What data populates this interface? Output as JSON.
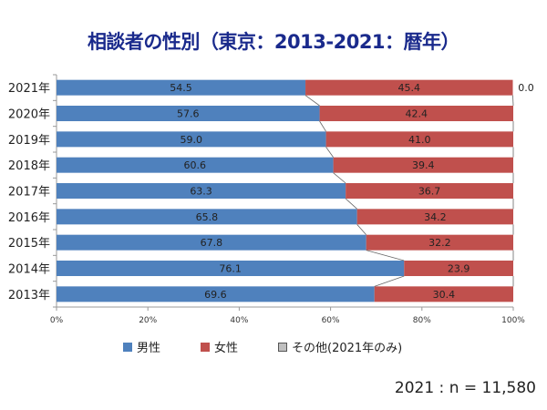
{
  "title": "相談者の性別（東京：2013-2021：暦年）",
  "footnote": "2021 : n = 11,580",
  "chart_data": {
    "type": "bar",
    "orientation": "horizontal",
    "stacked": "percent",
    "categories": [
      "2021年",
      "2020年",
      "2019年",
      "2018年",
      "2017年",
      "2016年",
      "2015年",
      "2014年",
      "2013年"
    ],
    "series": [
      {
        "name": "男性",
        "color": "#4f81bd",
        "values": [
          54.5,
          57.6,
          59.0,
          60.6,
          63.3,
          65.8,
          67.8,
          76.1,
          69.6
        ]
      },
      {
        "name": "女性",
        "color": "#c0504d",
        "values": [
          45.4,
          42.4,
          41.0,
          39.4,
          36.7,
          34.2,
          32.2,
          23.9,
          30.4
        ]
      },
      {
        "name": "その他(2021年のみ)",
        "color": "#bfbfbf",
        "values": [
          0.0,
          null,
          null,
          null,
          null,
          null,
          null,
          null,
          null
        ]
      }
    ],
    "xlim": [
      0,
      100
    ],
    "xticks": [
      "0%",
      "20%",
      "40%",
      "60%",
      "80%",
      "100%"
    ],
    "series_lines": true,
    "grid": false,
    "legend": "bottom"
  }
}
